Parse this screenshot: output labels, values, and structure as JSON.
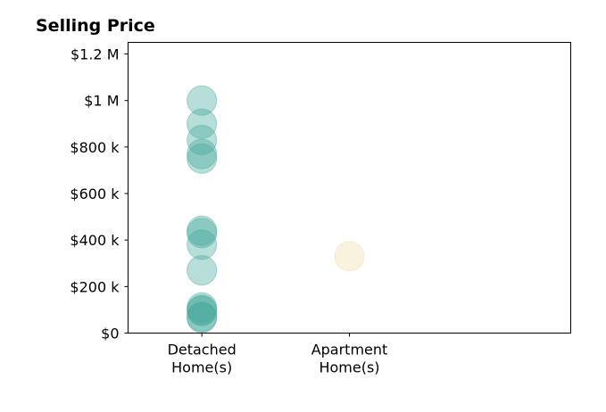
{
  "chart_data": {
    "type": "scatter",
    "title": "Selling Price",
    "xlabel": "",
    "ylabel": "",
    "categories": [
      "Detached\nHome(s)",
      "Apartment\nHome(s)"
    ],
    "xlim": [
      -0.5,
      2.5
    ],
    "ylim": [
      0,
      1250000
    ],
    "y_ticks": [
      0,
      200000,
      400000,
      600000,
      800000,
      1000000,
      1200000
    ],
    "y_tick_labels": [
      "$0",
      "$200 k",
      "$400 k",
      "$600 k",
      "$800 k",
      "$1 M",
      "$1.2 M"
    ],
    "grid": false,
    "series": [
      {
        "category_index": 0,
        "color": "#45a89a",
        "values": [
          1000000,
          900000,
          830000,
          770000,
          750000,
          440000,
          430000,
          380000,
          270000,
          110000,
          100000,
          95000,
          70000,
          65000
        ]
      },
      {
        "category_index": 1,
        "color": "#f0dca8",
        "values": [
          330000
        ]
      }
    ]
  }
}
